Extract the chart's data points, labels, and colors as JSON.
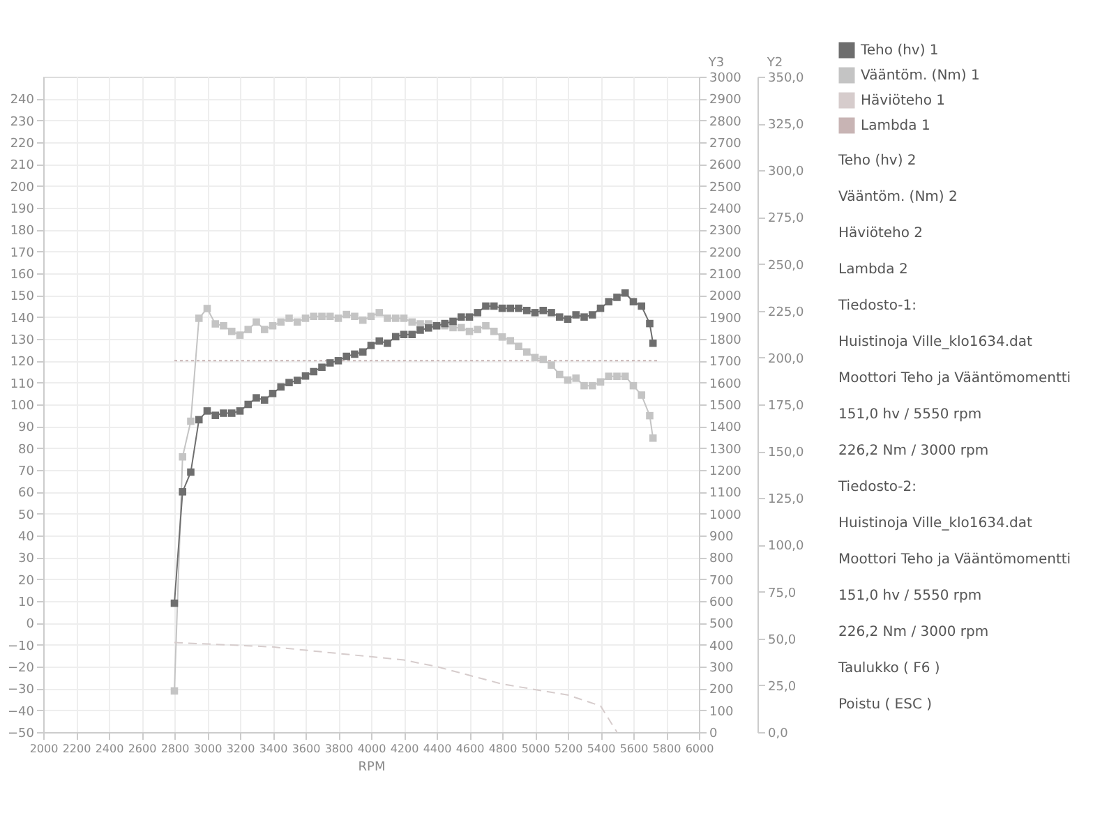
{
  "chart_data": {
    "type": "line",
    "xlabel": "RPM",
    "y2label": "Y2",
    "y3label": "Y3",
    "xlim": [
      2000,
      6000
    ],
    "xticks": [
      2000,
      2200,
      2400,
      2600,
      2800,
      3000,
      3200,
      3400,
      3600,
      3800,
      4000,
      4200,
      4400,
      4600,
      4800,
      5000,
      5200,
      5400,
      5600,
      5800,
      6000
    ],
    "ylim": [
      -50,
      250
    ],
    "yticks": [
      -50,
      -40,
      -30,
      -20,
      -10,
      0,
      10,
      20,
      30,
      40,
      50,
      60,
      70,
      80,
      90,
      100,
      110,
      120,
      130,
      140,
      150,
      160,
      170,
      180,
      190,
      200,
      210,
      220,
      230,
      240
    ],
    "y2lim": [
      0,
      350
    ],
    "y2ticks": [
      {
        "value": 0,
        "label": "0,0"
      },
      {
        "value": 25,
        "label": "25,0"
      },
      {
        "value": 50,
        "label": "50,0"
      },
      {
        "value": 75,
        "label": "75,0"
      },
      {
        "value": 100,
        "label": "100,0"
      },
      {
        "value": 125,
        "label": "125,0"
      },
      {
        "value": 150,
        "label": "150,0"
      },
      {
        "value": 175,
        "label": "175,0"
      },
      {
        "value": 200,
        "label": "200,0"
      },
      {
        "value": 225,
        "label": "225,0"
      },
      {
        "value": 250,
        "label": "250,0"
      },
      {
        "value": 275,
        "label": "275,0"
      },
      {
        "value": 300,
        "label": "300,0"
      },
      {
        "value": 325,
        "label": "325,0"
      },
      {
        "value": 350,
        "label": "350,0"
      }
    ],
    "y3lim": [
      0,
      3000
    ],
    "y3ticks": [
      0,
      100,
      200,
      300,
      400,
      500,
      600,
      700,
      800,
      900,
      1000,
      1100,
      1200,
      1300,
      1400,
      1500,
      1600,
      1700,
      1800,
      1900,
      2000,
      2100,
      2200,
      2300,
      2400,
      2500,
      2600,
      2700,
      2800,
      2900,
      3000
    ],
    "grid": true,
    "legend": "right",
    "series": [
      {
        "name": "Teho (hv) 1",
        "color": "#6e6e6e",
        "marker": "square",
        "line_style": "solid",
        "x": [
          2800,
          2850,
          2900,
          2950,
          3000,
          3050,
          3100,
          3150,
          3200,
          3250,
          3300,
          3350,
          3400,
          3450,
          3500,
          3550,
          3600,
          3650,
          3700,
          3750,
          3800,
          3850,
          3900,
          3950,
          4000,
          4050,
          4100,
          4150,
          4200,
          4250,
          4300,
          4350,
          4400,
          4450,
          4500,
          4550,
          4600,
          4650,
          4700,
          4750,
          4800,
          4850,
          4900,
          4950,
          5000,
          5050,
          5100,
          5150,
          5200,
          5250,
          5300,
          5350,
          5400,
          5450,
          5500,
          5550,
          5600,
          5650,
          5700,
          5720
        ],
        "values": [
          9,
          60,
          69,
          93,
          97,
          95,
          96,
          96,
          97,
          100,
          103,
          102,
          105,
          108,
          110,
          111,
          113,
          115,
          117,
          119,
          120,
          122,
          123,
          124,
          127,
          129,
          128,
          131,
          132,
          132,
          134,
          135,
          136,
          137,
          138,
          140,
          140,
          142,
          145,
          145,
          144,
          144,
          144,
          143,
          142,
          143,
          142,
          140,
          139,
          141,
          140,
          141,
          144,
          147,
          149,
          151,
          147,
          145,
          137,
          128
        ]
      },
      {
        "name": "Vääntöm. (Nm) 1",
        "color": "#c4c4c4",
        "marker": "square",
        "line_style": "solid",
        "axis": "y2",
        "x": [
          2800,
          2850,
          2900,
          2950,
          3000,
          3050,
          3100,
          3150,
          3200,
          3250,
          3300,
          3350,
          3400,
          3450,
          3500,
          3550,
          3600,
          3650,
          3700,
          3750,
          3800,
          3850,
          3900,
          3950,
          4000,
          4050,
          4100,
          4150,
          4200,
          4250,
          4300,
          4350,
          4400,
          4450,
          4500,
          4550,
          4600,
          4650,
          4700,
          4750,
          4800,
          4850,
          4900,
          4950,
          5000,
          5050,
          5100,
          5150,
          5200,
          5250,
          5300,
          5350,
          5400,
          5450,
          5500,
          5550,
          5600,
          5650,
          5700,
          5720
        ],
        "values": [
          22,
          147,
          166,
          221,
          226.2,
          218,
          217,
          214,
          212,
          215,
          219,
          215,
          217,
          219,
          221,
          219,
          221,
          222,
          222,
          222,
          221,
          223,
          222,
          220,
          222,
          224,
          221,
          221,
          221,
          219,
          218,
          218,
          217,
          217,
          216,
          216,
          214,
          215,
          217,
          214,
          211,
          209,
          206,
          203,
          200,
          199,
          196,
          191,
          188,
          189,
          185,
          185,
          187,
          190,
          190,
          190,
          185,
          180,
          169,
          157
        ]
      },
      {
        "name": "Häviöteho 1",
        "color": "#d6cccc",
        "marker": "none",
        "line_style": "dashed",
        "x": [
          2800,
          3400,
          3800,
          4200,
          4400,
          4800,
          5200,
          5400,
          5500
        ],
        "values": [
          -9,
          -11,
          -14,
          -17,
          -20,
          -28,
          -33,
          -38,
          -50
        ]
      },
      {
        "name": "Lambda 1",
        "color": "#c8b4b4",
        "marker": "none",
        "line_style": "dotted",
        "axis": "y3",
        "x": [
          2800,
          5750
        ],
        "values": [
          1700,
          1700
        ]
      }
    ],
    "annotations": [
      "Teho (hv) 2",
      "Vääntöm. (Nm) 2",
      "Häviöteho 2",
      "Lambda 2",
      "Tiedosto-1:",
      "Huistinoja Ville_klo1634.dat",
      "Moottori Teho ja Vääntömomentti",
      "151,0 hv / 5550 rpm",
      "226,2 Nm / 3000 rpm",
      "Tiedosto-2:",
      "Huistinoja Ville_klo1634.dat",
      "Moottori Teho ja Vääntömomentti",
      "151,0 hv / 5550 rpm",
      "226,2 Nm / 3000 rpm",
      "Taulukko ( F6 )",
      "Poistu ( ESC )"
    ]
  }
}
